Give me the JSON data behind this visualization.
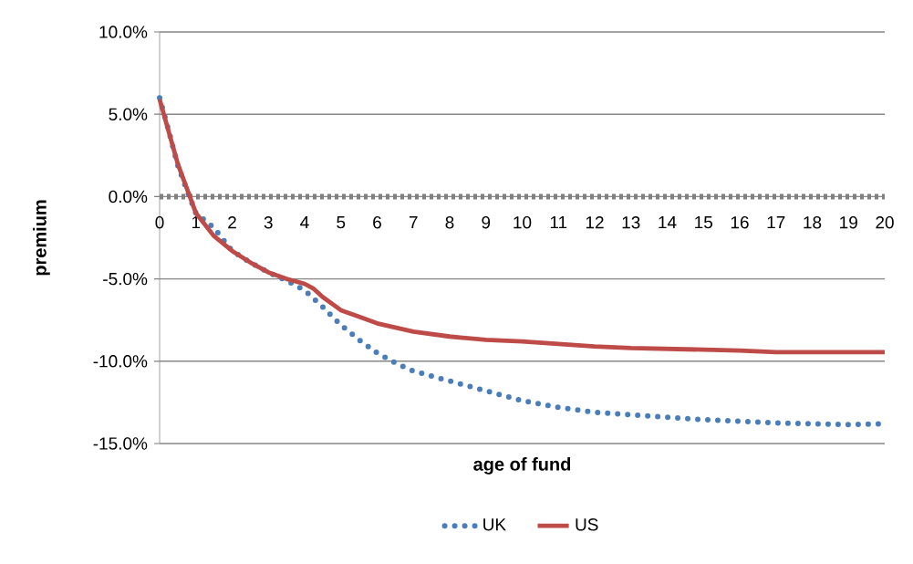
{
  "chart_data": {
    "type": "line",
    "xlabel": "age of fund",
    "ylabel": "premium",
    "xlim": [
      0,
      20
    ],
    "xticks": [
      0,
      1,
      2,
      3,
      4,
      5,
      6,
      7,
      8,
      9,
      10,
      11,
      12,
      13,
      14,
      15,
      16,
      17,
      18,
      19,
      20
    ],
    "ylim": [
      -15,
      10
    ],
    "yticks": [
      {
        "value": -15,
        "label": "-15.0%"
      },
      {
        "value": -10,
        "label": "-10.0%"
      },
      {
        "value": -5,
        "label": "-5.0%"
      },
      {
        "value": 0,
        "label": "0.0%"
      },
      {
        "value": 5,
        "label": "5.0%"
      },
      {
        "value": 10,
        "label": "10.0%"
      }
    ],
    "grid": "y",
    "legend": "bottom",
    "marker": "none",
    "ref_lines": [
      {
        "axis": "y",
        "value": 0,
        "color": "#808080",
        "line_style": "dotted"
      }
    ],
    "series": [
      {
        "name": "UK",
        "color": "#4a7ebb",
        "line_style": "dotted",
        "x": [
          0,
          0.25,
          0.5,
          0.75,
          1,
          1.5,
          2,
          2.5,
          3,
          3.5,
          4,
          4.5,
          5,
          5.5,
          6,
          6.5,
          7,
          8,
          9,
          10,
          11,
          12,
          13,
          14,
          15,
          16,
          17,
          18,
          19,
          20
        ],
        "values": [
          6.0,
          4.0,
          1.9,
          0.4,
          -1.0,
          -1.9,
          -3.3,
          -4.0,
          -4.6,
          -5.1,
          -5.7,
          -6.7,
          -7.8,
          -8.7,
          -9.5,
          -10.1,
          -10.6,
          -11.2,
          -11.8,
          -12.4,
          -12.8,
          -13.1,
          -13.25,
          -13.4,
          -13.55,
          -13.65,
          -13.75,
          -13.8,
          -13.85,
          -13.8
        ]
      },
      {
        "name": "US",
        "color": "#be4b48",
        "line_style": "solid",
        "x": [
          0,
          0.5,
          1,
          1.5,
          2,
          2.5,
          3,
          3.5,
          4,
          4.25,
          4.5,
          5,
          5.5,
          6,
          6.5,
          7,
          8,
          9,
          10,
          11,
          12,
          13,
          14,
          15,
          16,
          17,
          18,
          19,
          20
        ],
        "values": [
          5.9,
          2.0,
          -1.0,
          -2.4,
          -3.3,
          -4.0,
          -4.6,
          -5.0,
          -5.3,
          -5.6,
          -6.1,
          -6.9,
          -7.3,
          -7.7,
          -7.95,
          -8.2,
          -8.5,
          -8.7,
          -8.8,
          -8.95,
          -9.1,
          -9.2,
          -9.25,
          -9.3,
          -9.35,
          -9.45,
          -9.45,
          -9.45,
          -9.45
        ]
      }
    ]
  }
}
